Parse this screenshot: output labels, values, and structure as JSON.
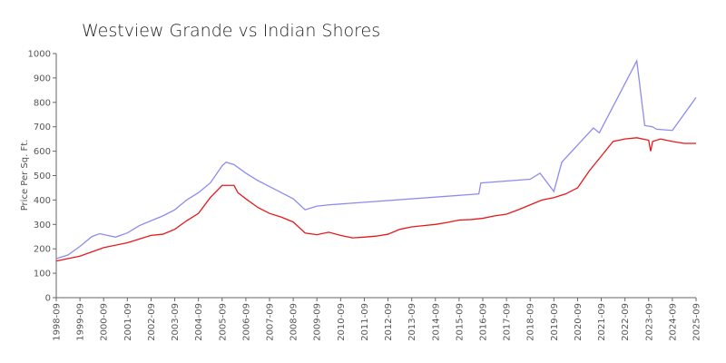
{
  "chart_data": {
    "type": "line",
    "title": "Westview Grande vs Indian Shores",
    "y_label": "Price Per Sq. Ft.",
    "xlim": [
      "1998-09",
      "2025-09"
    ],
    "xticks": [
      "1998-09",
      "1999-09",
      "2000-09",
      "2001-09",
      "2002-09",
      "2003-09",
      "2004-09",
      "2005-09",
      "2006-09",
      "2007-09",
      "2008-09",
      "2009-09",
      "2010-09",
      "2011-09",
      "2012-09",
      "2013-09",
      "2014-09",
      "2015-09",
      "2016-09",
      "2017-09",
      "2018-09",
      "2019-09",
      "2020-09",
      "2021-09",
      "2022-09",
      "2023-09",
      "2024-09",
      "2025-09"
    ],
    "ylim": [
      0,
      1000
    ],
    "yticks": [
      0,
      100,
      200,
      300,
      400,
      500,
      600,
      700,
      800,
      900,
      1000
    ],
    "series": [
      {
        "color": "#8c8cf0",
        "x": [
          "1998-09",
          "1999-03",
          "1999-09",
          "2000-03",
          "2000-07",
          "2001-03",
          "2001-09",
          "2002-03",
          "2002-09",
          "2003-03",
          "2003-09",
          "2004-03",
          "2004-09",
          "2005-03",
          "2005-09",
          "2005-11",
          "2006-03",
          "2006-09",
          "2007-03",
          "2007-09",
          "2008-03",
          "2008-09",
          "2009-03",
          "2009-09",
          "2010-03",
          "2016-07",
          "2016-08",
          "2018-09",
          "2019-02",
          "2019-09",
          "2020-01",
          "2021-05",
          "2021-08",
          "2023-03",
          "2023-07",
          "2023-11",
          "2024-01",
          "2024-09",
          "2025-09"
        ],
        "values": [
          160,
          175,
          210,
          250,
          262,
          248,
          265,
          295,
          315,
          335,
          360,
          400,
          430,
          470,
          540,
          555,
          545,
          510,
          480,
          455,
          430,
          405,
          360,
          375,
          380,
          425,
          470,
          485,
          510,
          435,
          555,
          695,
          675,
          970,
          705,
          700,
          690,
          685,
          820
        ]
      },
      {
        "color": "#e8171c",
        "x": [
          "1998-09",
          "1999-09",
          "2000-09",
          "2001-09",
          "2002-09",
          "2003-03",
          "2003-09",
          "2004-03",
          "2004-09",
          "2005-03",
          "2005-09",
          "2006-03",
          "2006-05",
          "2006-09",
          "2007-03",
          "2007-09",
          "2008-03",
          "2008-09",
          "2009-03",
          "2009-09",
          "2010-03",
          "2010-09",
          "2011-03",
          "2011-09",
          "2012-03",
          "2012-09",
          "2013-03",
          "2013-09",
          "2014-03",
          "2014-09",
          "2015-03",
          "2015-09",
          "2016-03",
          "2016-09",
          "2017-03",
          "2017-09",
          "2018-03",
          "2018-09",
          "2019-03",
          "2019-09",
          "2020-03",
          "2020-09",
          "2021-03",
          "2021-09",
          "2022-03",
          "2022-09",
          "2023-03",
          "2023-09",
          "2023-10",
          "2023-11",
          "2024-03",
          "2024-09",
          "2025-03",
          "2025-09"
        ],
        "values": [
          150,
          170,
          205,
          225,
          255,
          260,
          280,
          315,
          345,
          410,
          460,
          460,
          430,
          405,
          370,
          345,
          330,
          310,
          265,
          258,
          268,
          255,
          245,
          248,
          252,
          260,
          280,
          290,
          295,
          300,
          308,
          318,
          320,
          325,
          335,
          342,
          360,
          380,
          400,
          410,
          425,
          450,
          520,
          580,
          640,
          650,
          655,
          645,
          600,
          640,
          650,
          640,
          632,
          632
        ]
      }
    ]
  }
}
